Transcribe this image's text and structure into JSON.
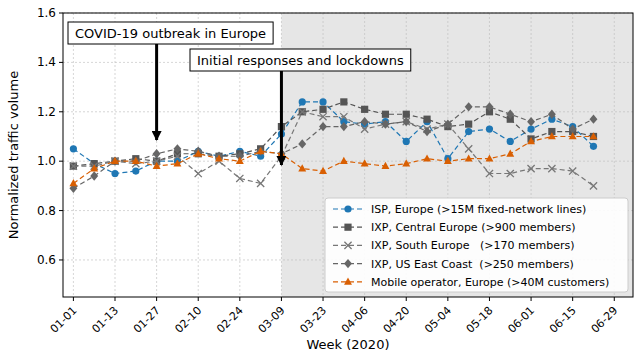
{
  "chart_data": {
    "type": "line",
    "x_label": "Week (2020)",
    "y_label": "Normalized traffic volume",
    "categories": [
      "01-01",
      null,
      "01-13",
      null,
      "01-27",
      null,
      "02-10",
      null,
      "02-24",
      null,
      "03-09",
      null,
      "03-23",
      null,
      "04-06",
      null,
      "04-20",
      null,
      "05-04",
      null,
      "05-18",
      null,
      "06-01",
      null,
      "06-15",
      null,
      "06-29"
    ],
    "ylim": [
      0.45,
      1.6
    ],
    "yticks": [
      0.6,
      0.8,
      {
        "value": 1,
        "label": "1.0"
      },
      1.2,
      1.4,
      1.6
    ],
    "grid": true,
    "legend": "lower right",
    "line_style": "dashed",
    "annotations": [
      {
        "text": "COVID-19 outbreak in Europe",
        "x": "01-27"
      },
      {
        "text": "Initial responses and lockdowns",
        "x": "03-09"
      }
    ],
    "series": [
      {
        "name": "ISP, Europe (>15M fixed-network lines)",
        "color": "#1f77b4",
        "marker": "circle",
        "values": [
          1.05,
          0.99,
          0.95,
          0.96,
          1.0,
          1.0,
          1.04,
          1.02,
          1.04,
          1.02,
          1.11,
          1.24,
          1.24,
          1.16,
          1.15,
          1.16,
          1.08,
          1.16,
          1.01,
          1.12,
          1.13,
          1.08,
          1.13,
          1.17,
          1.14,
          1.06,
          null
        ]
      },
      {
        "name": "IXP, Central Europe (>900 members)",
        "color": "#555555",
        "marker": "square",
        "values": [
          0.98,
          0.99,
          1.0,
          1.01,
          1.0,
          1.03,
          1.03,
          1.02,
          1.03,
          1.05,
          1.14,
          1.2,
          1.21,
          1.24,
          1.21,
          1.19,
          1.19,
          1.17,
          1.14,
          1.15,
          1.2,
          1.17,
          1.09,
          1.12,
          1.12,
          1.1,
          null
        ]
      },
      {
        "name": "IXP, South Europe   (>170 members)",
        "color": "#777777",
        "marker": "x",
        "values": [
          0.98,
          0.98,
          1.0,
          0.99,
          1.0,
          1.02,
          0.95,
          1.0,
          0.93,
          0.91,
          1.02,
          1.2,
          1.18,
          1.18,
          1.13,
          1.15,
          1.16,
          1.13,
          1.15,
          1.05,
          0.95,
          0.95,
          0.97,
          0.97,
          0.96,
          0.9,
          null
        ]
      },
      {
        "name": "IXP, US East Coast  (>250 members)",
        "color": "#666666",
        "marker": "diamond",
        "values": [
          0.89,
          0.94,
          1.0,
          1.0,
          1.03,
          1.05,
          1.04,
          1.02,
          1.02,
          1.04,
          1.03,
          1.07,
          1.14,
          1.14,
          1.16,
          1.15,
          1.16,
          1.12,
          1.15,
          1.22,
          1.22,
          1.19,
          1.16,
          1.19,
          1.13,
          1.17,
          null
        ]
      },
      {
        "name": "Mobile operator, Europe (>40M customers)",
        "color": "#d95f02",
        "marker": "triangle",
        "values": [
          0.91,
          0.97,
          1.0,
          1.0,
          0.98,
          0.99,
          1.03,
          1.01,
          1.0,
          1.04,
          1.03,
          0.97,
          0.96,
          1.0,
          0.99,
          0.98,
          0.99,
          1.01,
          1.0,
          1.01,
          1.01,
          1.03,
          1.08,
          1.1,
          1.1,
          1.1,
          null
        ]
      }
    ]
  }
}
